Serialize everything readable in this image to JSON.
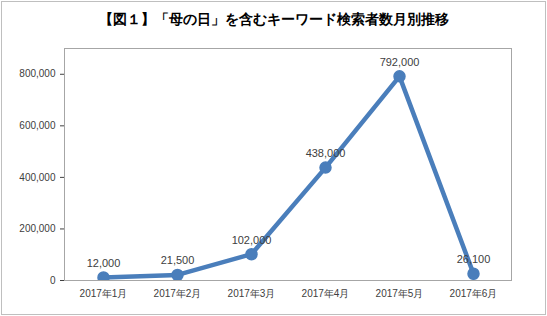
{
  "chart_data": {
    "type": "line",
    "title": "【図１】「母の日」を含むキーワード検索者数月別推移",
    "categories": [
      "2017年1月",
      "2017年2月",
      "2017年3月",
      "2017年4月",
      "2017年5月",
      "2017年6月"
    ],
    "values": [
      12000,
      21500,
      102000,
      438000,
      792000,
      26100
    ],
    "value_labels": [
      "12,000",
      "21,500",
      "102,000",
      "438,000",
      "792,000",
      "26,100"
    ],
    "color": "#4a7ebb",
    "marker": "circle",
    "data_labels": true,
    "grid": false,
    "ylim": [
      0,
      900000
    ],
    "yticks": [
      0,
      {
        "value": 200000,
        "label": "200,000"
      },
      {
        "value": 400000,
        "label": "400,000"
      },
      {
        "value": 600000,
        "label": "600,000"
      },
      {
        "value": 800000,
        "label": "800,000"
      }
    ]
  }
}
